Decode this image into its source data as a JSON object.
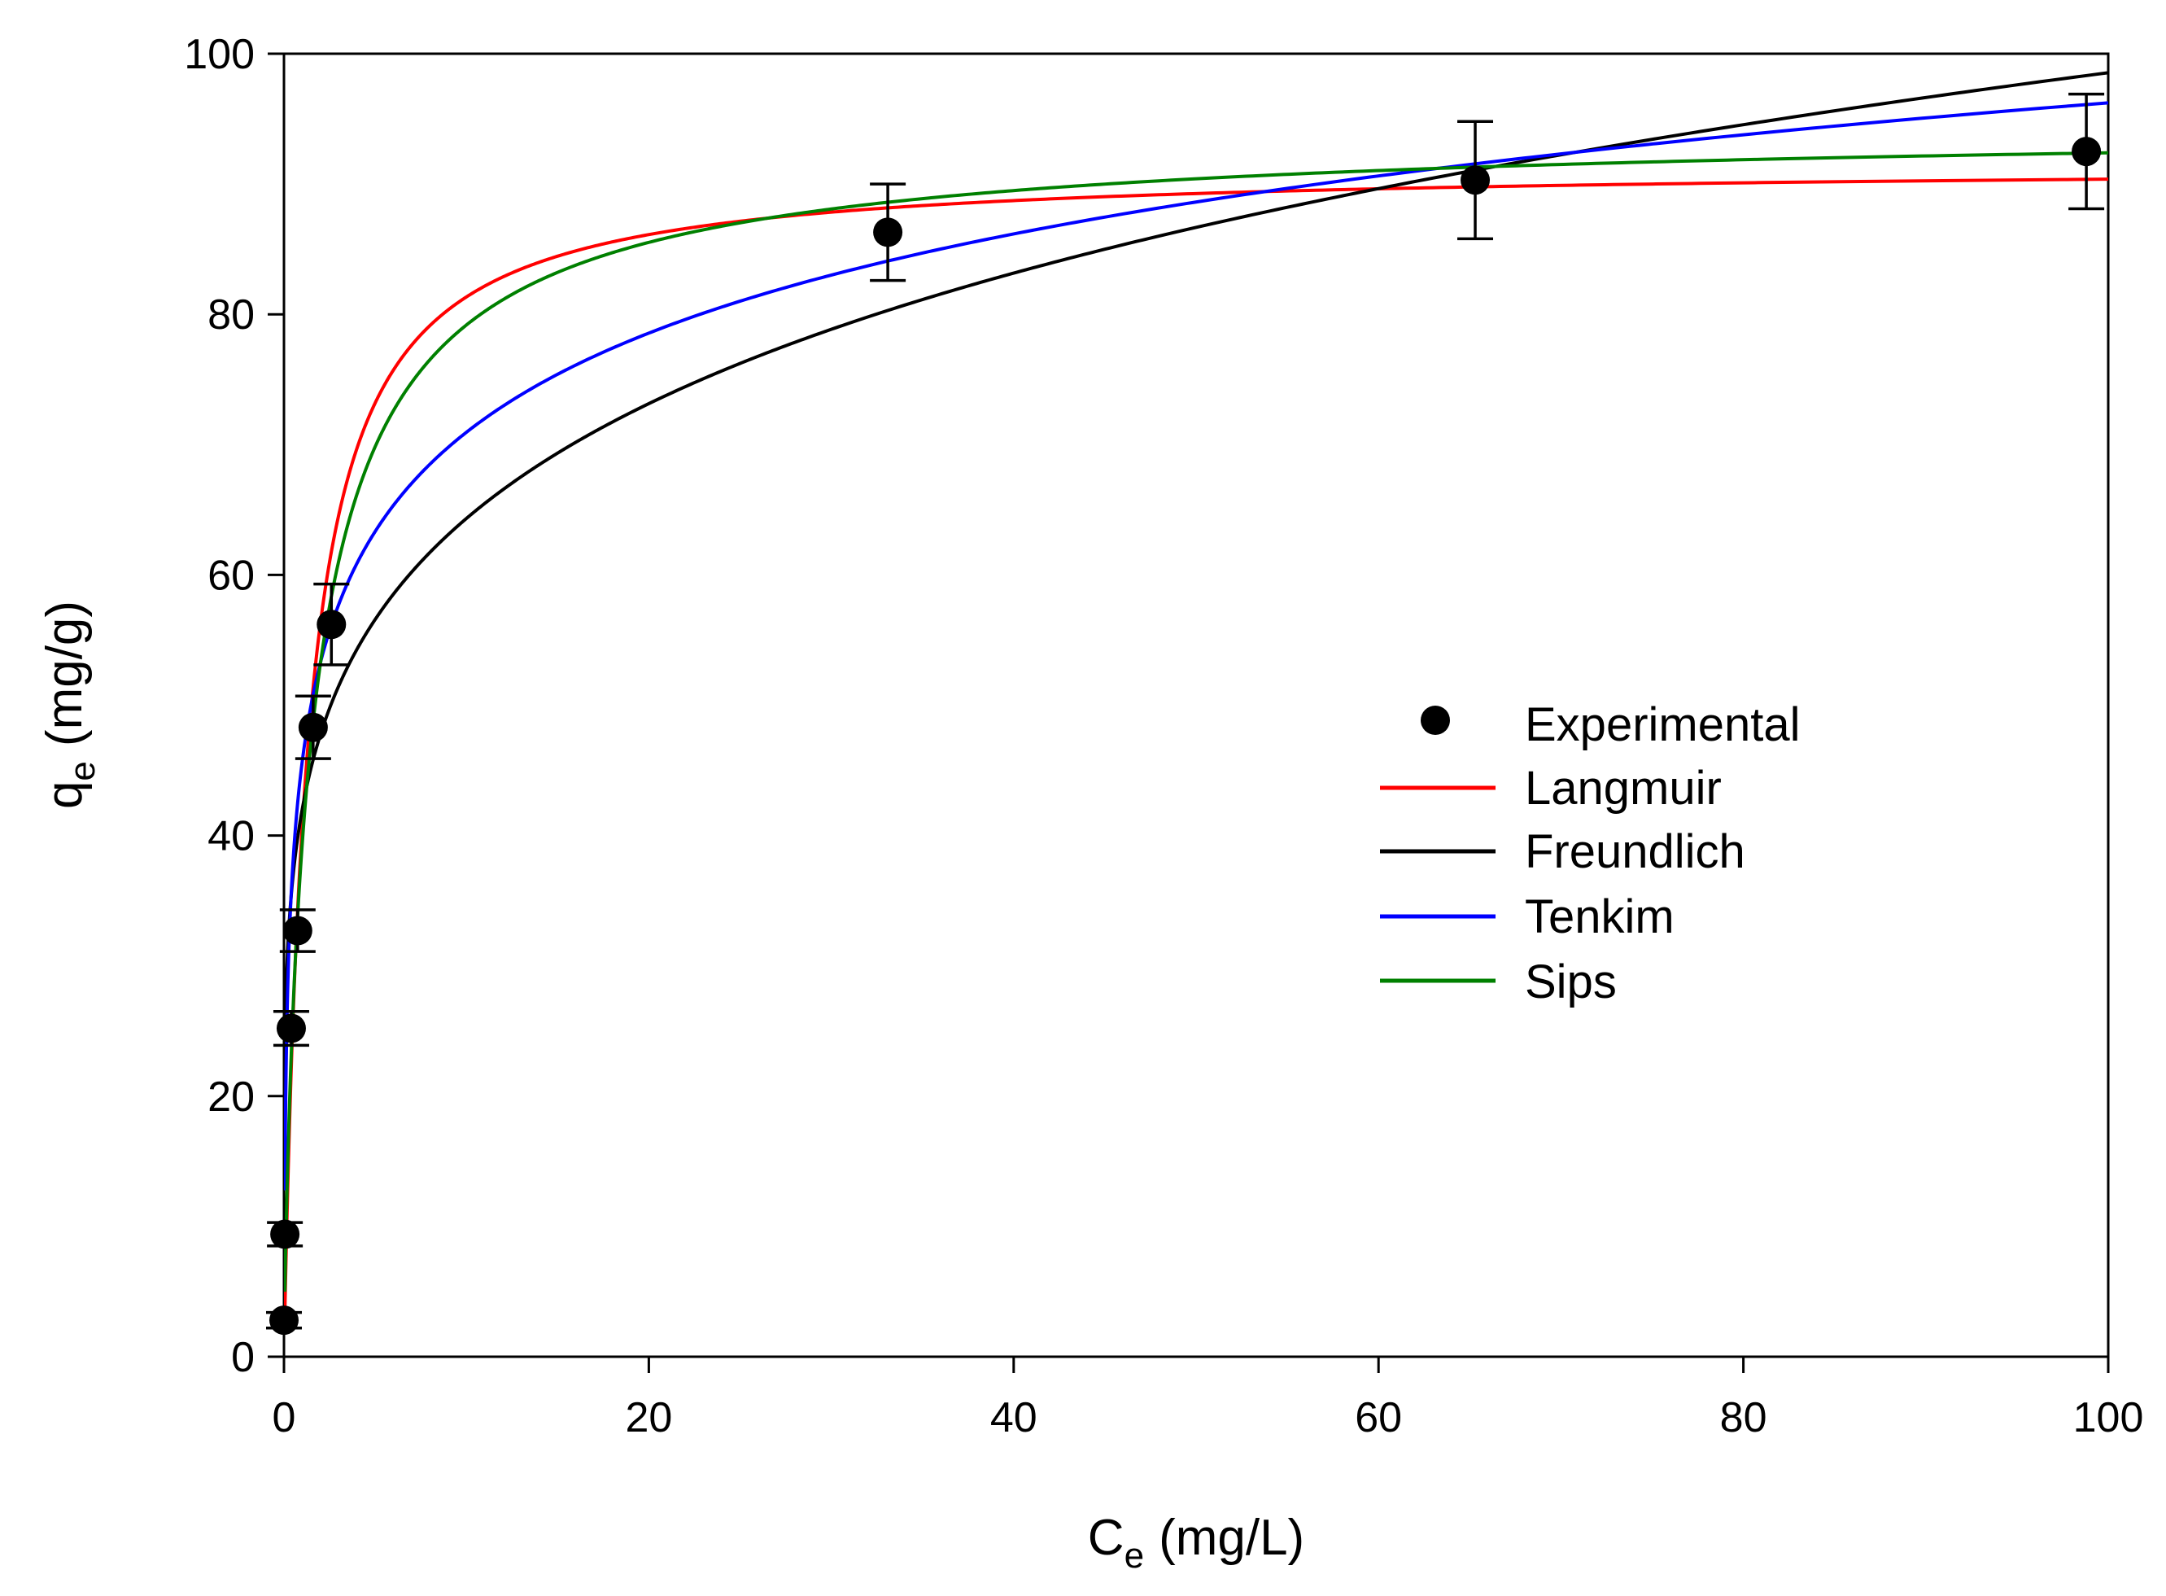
{
  "chart_data": {
    "type": "scatter",
    "title": "",
    "xlabel_main": "C",
    "xlabel_sub": "e",
    "xlabel_unit": "(mg/L)",
    "ylabel_main": "q",
    "ylabel_sub": "e",
    "ylabel_unit": "(mg/g)",
    "xlim": [
      0,
      100
    ],
    "ylim": [
      0,
      100
    ],
    "x_ticks": [
      0,
      20,
      40,
      60,
      80,
      100
    ],
    "y_ticks": [
      0,
      20,
      40,
      60,
      80,
      100
    ],
    "x_tick_labels": [
      "0",
      "20",
      "40",
      "60",
      "80",
      "100"
    ],
    "y_tick_labels": [
      "0",
      "20",
      "40",
      "60",
      "80",
      "100"
    ],
    "grid": false,
    "legend_position": "center-right",
    "experimental": {
      "name": "Experimental",
      "color": "#000000",
      "points": [
        {
          "x": 0.0,
          "y": 2.8,
          "err": 0.6
        },
        {
          "x": 0.05,
          "y": 9.4,
          "err": 0.9
        },
        {
          "x": 0.4,
          "y": 25.2,
          "err": 1.3
        },
        {
          "x": 0.75,
          "y": 32.7,
          "err": 1.6
        },
        {
          "x": 1.6,
          "y": 48.3,
          "err": 2.4
        },
        {
          "x": 2.6,
          "y": 56.2,
          "err": 3.1
        },
        {
          "x": 33.1,
          "y": 86.3,
          "err": 3.7
        },
        {
          "x": 65.3,
          "y": 90.3,
          "err": 4.5
        },
        {
          "x": 98.8,
          "y": 92.5,
          "err": 4.4
        }
      ]
    },
    "series": [
      {
        "name": "Langmuir",
        "color": "#ff0000",
        "model": "langmuir",
        "qm": 91.5,
        "KL": 0.8
      },
      {
        "name": "Freundlich",
        "color": "#000000",
        "model": "freundlich",
        "KF": 42.0,
        "n": 5.4
      },
      {
        "name": "Tenkim",
        "color": "#0000ff",
        "model": "temkin",
        "B": 10.98,
        "AT": 64.0
      },
      {
        "name": "Sips",
        "color": "#008000",
        "model": "sips",
        "qm": 95.0,
        "Ks": 0.665,
        "ns": 0.85
      }
    ]
  }
}
